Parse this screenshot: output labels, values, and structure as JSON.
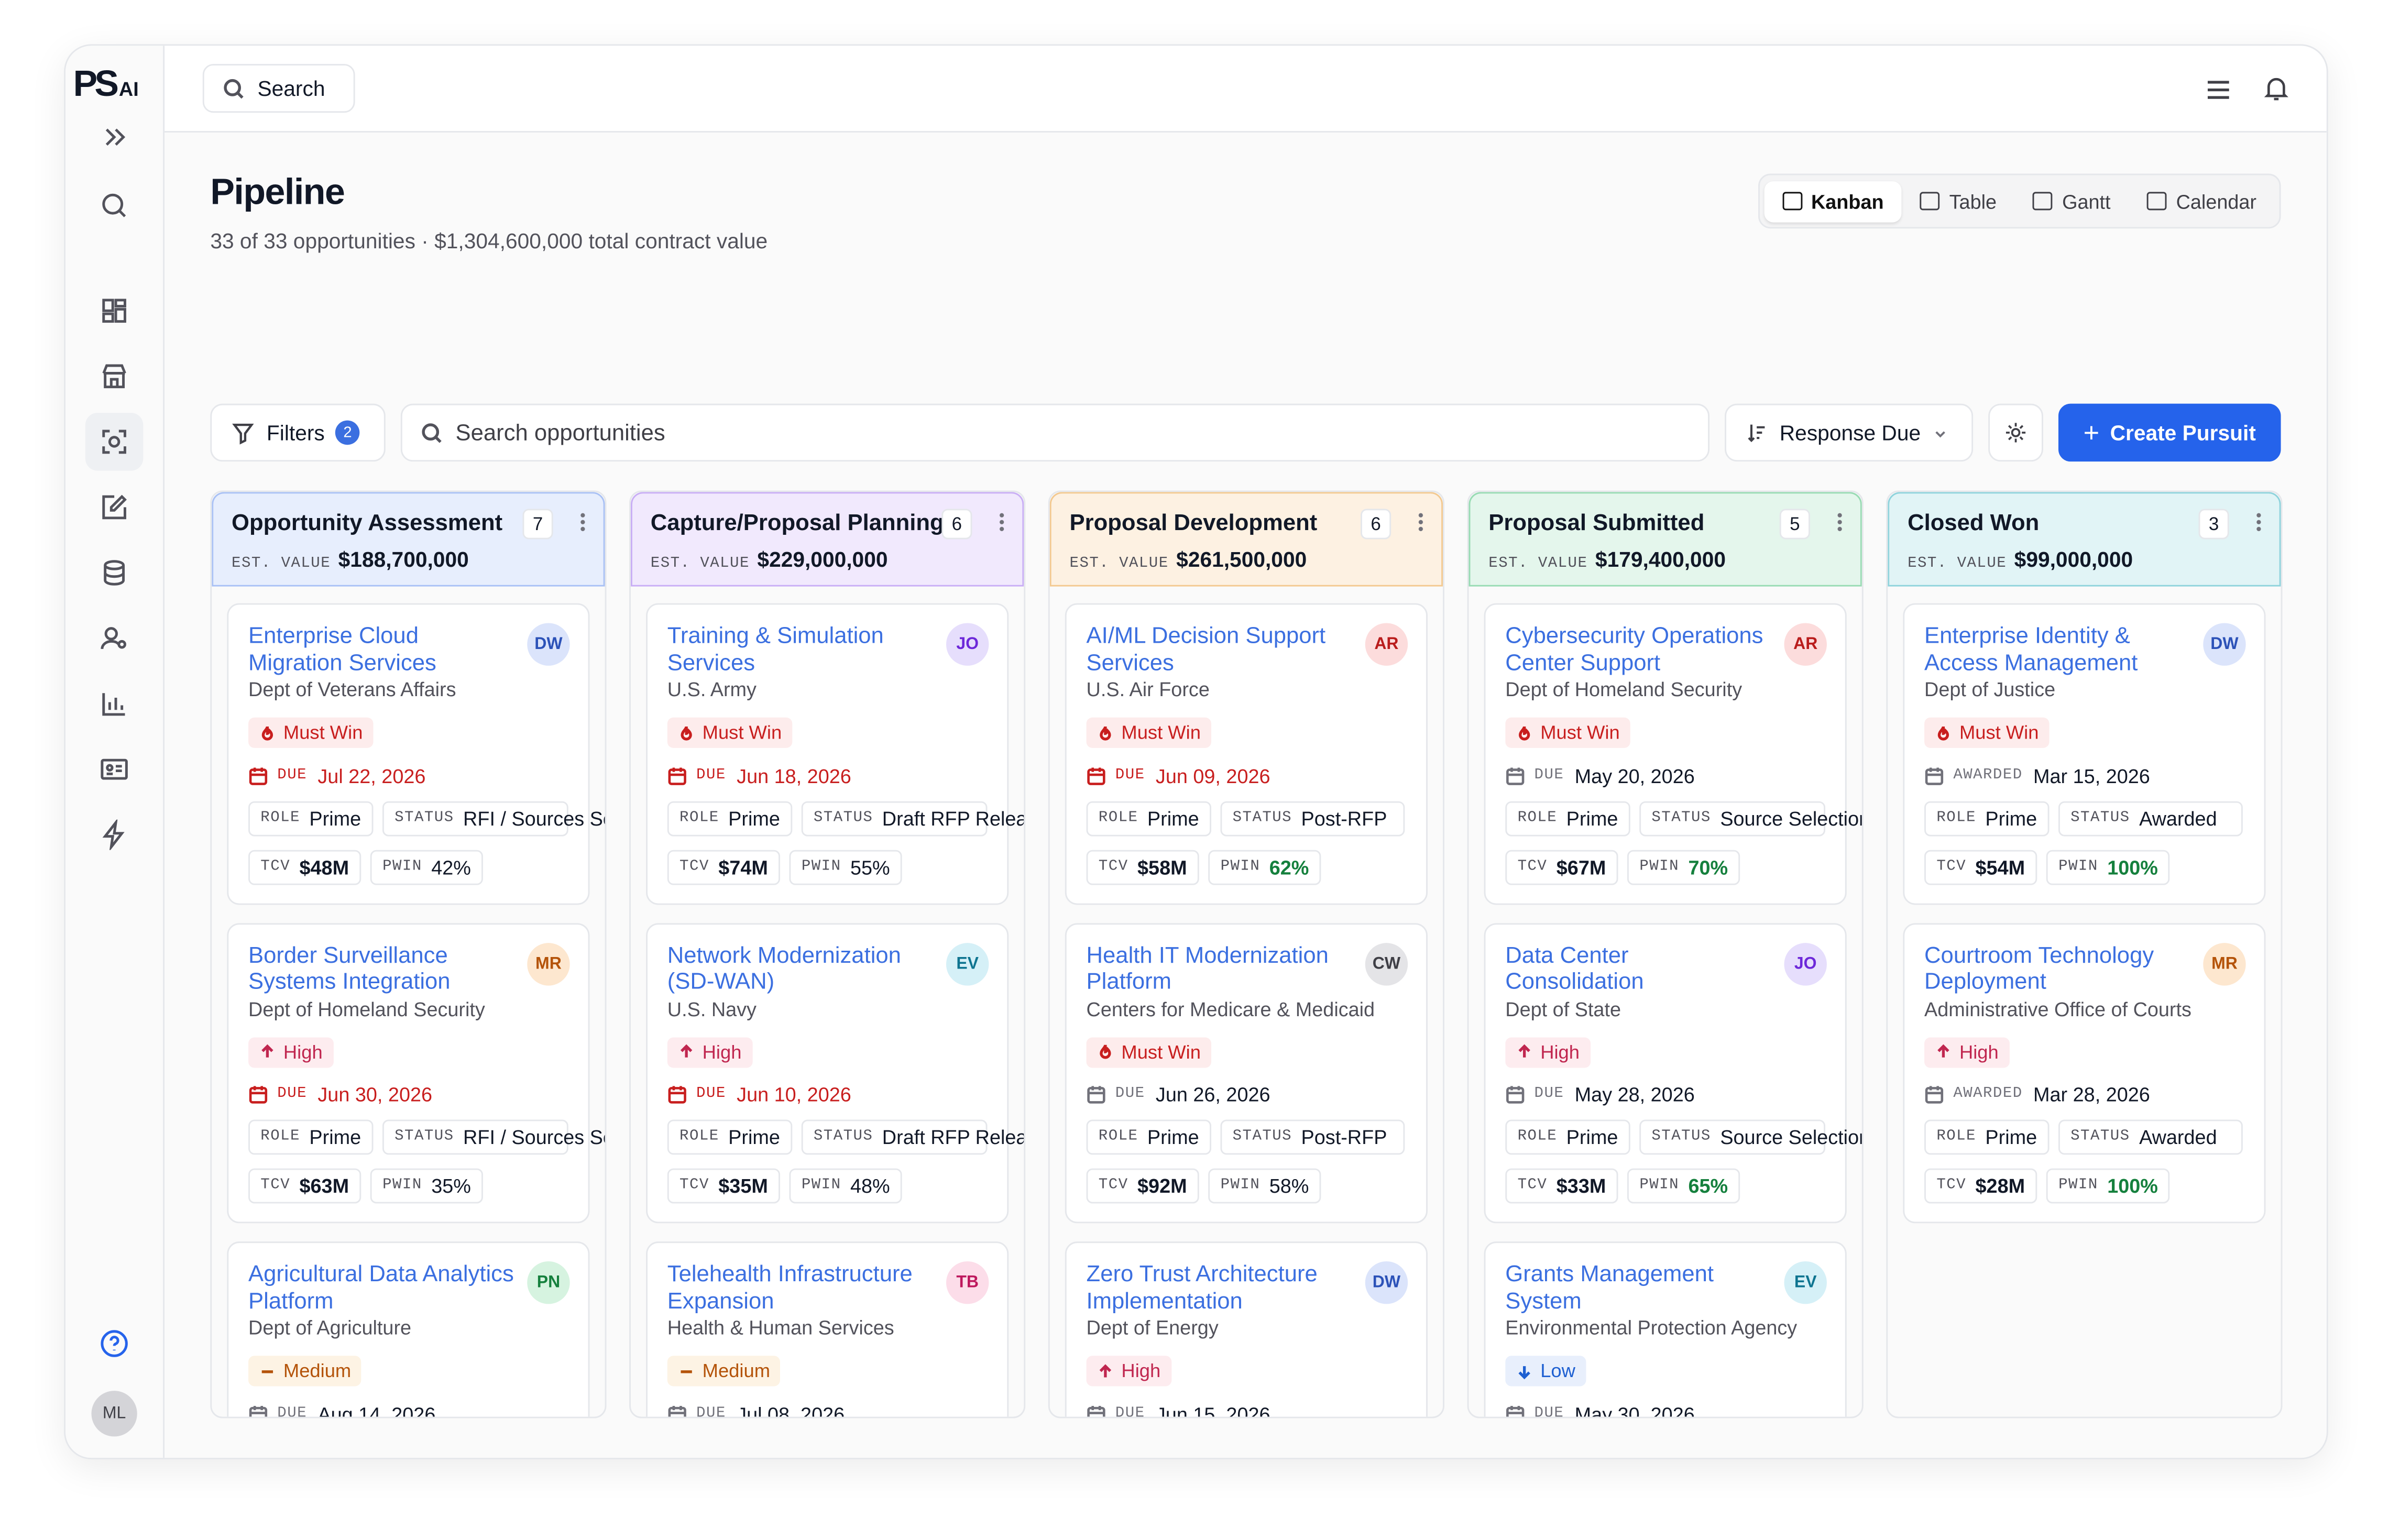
{
  "app": {
    "logo": "PS",
    "logo_suffix": "AI",
    "search": "Search",
    "user": "ML"
  },
  "page": {
    "title": "Pipeline",
    "subtitle": "33 of 33 opportunities · $1,304,600,000 total contract value"
  },
  "views": [
    {
      "label": "Kanban",
      "active": true
    },
    {
      "label": "Table",
      "active": false
    },
    {
      "label": "Gantt",
      "active": false
    },
    {
      "label": "Calendar",
      "active": false
    }
  ],
  "toolbar": {
    "filters": "Filters",
    "filter_count": "2",
    "search_placeholder": "Search opportunities",
    "sort": "Response Due",
    "create": "Create Pursuit"
  },
  "labels": {
    "est_value": "EST. VALUE",
    "role": "ROLE",
    "status": "STATUS",
    "tcv": "TCV",
    "pwin": "PWIN"
  },
  "priority_styles": {
    "Must Win": {
      "color": "#c81e1e",
      "bg": "#fdecec",
      "icon": "flame"
    },
    "High": {
      "color": "#c0264f",
      "bg": "#fdecef",
      "icon": "up"
    },
    "Medium": {
      "color": "#b45309",
      "bg": "#fdf3e4",
      "icon": "dash"
    },
    "Low": {
      "color": "#1d5fd1",
      "bg": "#e8effc",
      "icon": "down"
    }
  },
  "columns": [
    {
      "name": "Opportunity Assessment",
      "count": "7",
      "est_value": "$188,700,000",
      "bg": "#e7eefd",
      "border": "#a9c1f5",
      "cards": [
        {
          "title": "Enterprise Cloud Migration Services",
          "owner": "DW",
          "owner_bg": "#dbe4fb",
          "owner_fg": "#2c52b8",
          "org": "Dept of Veterans Affairs",
          "priority": "Must Win",
          "date_label": "DUE",
          "date": "Jul 22, 2026",
          "date_color": "#c81e1e",
          "role": "Prime",
          "status": "RFI / Sources Sought",
          "tcv": "$48M",
          "pwin": "42%",
          "pwin_color": "#111827"
        },
        {
          "title": "Border Surveillance Systems Integration",
          "owner": "MR",
          "owner_bg": "#fde7cf",
          "owner_fg": "#b45309",
          "org": "Dept of Homeland Security",
          "priority": "High",
          "date_label": "DUE",
          "date": "Jun 30, 2026",
          "date_color": "#c81e1e",
          "role": "Prime",
          "status": "RFI / Sources Sought",
          "tcv": "$63M",
          "pwin": "35%",
          "pwin_color": "#111827"
        },
        {
          "title": "Agricultural Data Analytics Platform",
          "owner": "PN",
          "owner_bg": "#d6f3e0",
          "owner_fg": "#15803d",
          "org": "Dept of Agriculture",
          "priority": "Medium",
          "date_label": "DUE",
          "date": "Aug 14, 2026",
          "date_color": "#111827"
        }
      ]
    },
    {
      "name": "Capture/Proposal Planning",
      "count": "6",
      "est_value": "$229,000,000",
      "bg": "#f1e9fd",
      "border": "#c9aef5",
      "cards": [
        {
          "title": "Training & Simulation Services",
          "owner": "JO",
          "owner_bg": "#e6defc",
          "owner_fg": "#6d28d9",
          "org": "U.S. Army",
          "priority": "Must Win",
          "date_label": "DUE",
          "date": "Jun 18, 2026",
          "date_color": "#c81e1e",
          "role": "Prime",
          "status": "Draft RFP Release",
          "tcv": "$74M",
          "pwin": "55%",
          "pwin_color": "#111827"
        },
        {
          "title": "Network Modernization (SD-WAN)",
          "owner": "EV",
          "owner_bg": "#d5f0f7",
          "owner_fg": "#0e7490",
          "org": "U.S. Navy",
          "priority": "High",
          "date_label": "DUE",
          "date": "Jun 10, 2026",
          "date_color": "#c81e1e",
          "role": "Prime",
          "status": "Draft RFP Release",
          "tcv": "$35M",
          "pwin": "48%",
          "pwin_color": "#111827"
        },
        {
          "title": "Telehealth Infrastructure Expansion",
          "owner": "TB",
          "owner_bg": "#fcdde9",
          "owner_fg": "#be185d",
          "org": "Health & Human Services",
          "priority": "Medium",
          "date_label": "DUE",
          "date": "Jul 08, 2026",
          "date_color": "#111827"
        }
      ]
    },
    {
      "name": "Proposal Development",
      "count": "6",
      "est_value": "$261,500,000",
      "bg": "#fdf1e2",
      "border": "#f3c990",
      "cards": [
        {
          "title": "AI/ML Decision Support Services",
          "owner": "AR",
          "owner_bg": "#fcdcdc",
          "owner_fg": "#b91c1c",
          "org": "U.S. Air Force",
          "priority": "Must Win",
          "date_label": "DUE",
          "date": "Jun 09, 2026",
          "date_color": "#c81e1e",
          "role": "Prime",
          "status": "Post-RFP",
          "tcv": "$58M",
          "pwin": "62%",
          "pwin_color": "#15803d"
        },
        {
          "title": "Health IT Modernization Platform",
          "owner": "CW",
          "owner_bg": "#e4e4e7",
          "owner_fg": "#3f3f46",
          "org": "Centers for Medicare & Medicaid",
          "priority": "Must Win",
          "date_label": "DUE",
          "date": "Jun 26, 2026",
          "date_color": "#111827",
          "role": "Prime",
          "status": "Post-RFP",
          "tcv": "$92M",
          "pwin": "58%",
          "pwin_color": "#111827"
        },
        {
          "title": "Zero Trust Architecture Implementation",
          "owner": "DW",
          "owner_bg": "#dbe4fb",
          "owner_fg": "#2c52b8",
          "org": "Dept of Energy",
          "priority": "High",
          "date_label": "DUE",
          "date": "Jun 15, 2026",
          "date_color": "#111827"
        }
      ]
    },
    {
      "name": "Proposal Submitted",
      "count": "5",
      "est_value": "$179,400,000",
      "bg": "#e4f6ec",
      "border": "#98dbb3",
      "cards": [
        {
          "title": "Cybersecurity Operations Center Support",
          "owner": "AR",
          "owner_bg": "#fcdcdc",
          "owner_fg": "#b91c1c",
          "org": "Dept of Homeland Security",
          "priority": "Must Win",
          "date_label": "DUE",
          "date": "May 20, 2026",
          "date_color": "#111827",
          "role": "Prime",
          "status": "Source Selection",
          "tcv": "$67M",
          "pwin": "70%",
          "pwin_color": "#15803d"
        },
        {
          "title": "Data Center Consolidation",
          "owner": "JO",
          "owner_bg": "#e6defc",
          "owner_fg": "#6d28d9",
          "org": "Dept of State",
          "priority": "High",
          "date_label": "DUE",
          "date": "May 28, 2026",
          "date_color": "#111827",
          "role": "Prime",
          "status": "Source Selection",
          "tcv": "$33M",
          "pwin": "65%",
          "pwin_color": "#15803d"
        },
        {
          "title": "Grants Management System",
          "owner": "EV",
          "owner_bg": "#d5f0f7",
          "owner_fg": "#0e7490",
          "org": "Environmental Protection Agency",
          "priority": "Low",
          "date_label": "DUE",
          "date": "May 30, 2026",
          "date_color": "#111827"
        }
      ]
    },
    {
      "name": "Closed Won",
      "count": "3",
      "est_value": "$99,000,000",
      "bg": "#e1f4f6",
      "border": "#8fd3dc",
      "cards": [
        {
          "title": "Enterprise Identity & Access Management",
          "owner": "DW",
          "owner_bg": "#dbe4fb",
          "owner_fg": "#2c52b8",
          "org": "Dept of Justice",
          "priority": "Must Win",
          "date_label": "AWARDED",
          "date": "Mar 15, 2026",
          "date_color": "#111827",
          "role": "Prime",
          "status": "Awarded",
          "tcv": "$54M",
          "pwin": "100%",
          "pwin_color": "#15803d"
        },
        {
          "title": "Courtroom Technology Deployment",
          "owner": "MR",
          "owner_bg": "#fde7cf",
          "owner_fg": "#b45309",
          "org": "Administrative Office of Courts",
          "priority": "High",
          "date_label": "AWARDED",
          "date": "Mar 28, 2026",
          "date_color": "#111827",
          "role": "Prime",
          "status": "Awarded",
          "tcv": "$28M",
          "pwin": "100%",
          "pwin_color": "#15803d"
        }
      ]
    }
  ]
}
